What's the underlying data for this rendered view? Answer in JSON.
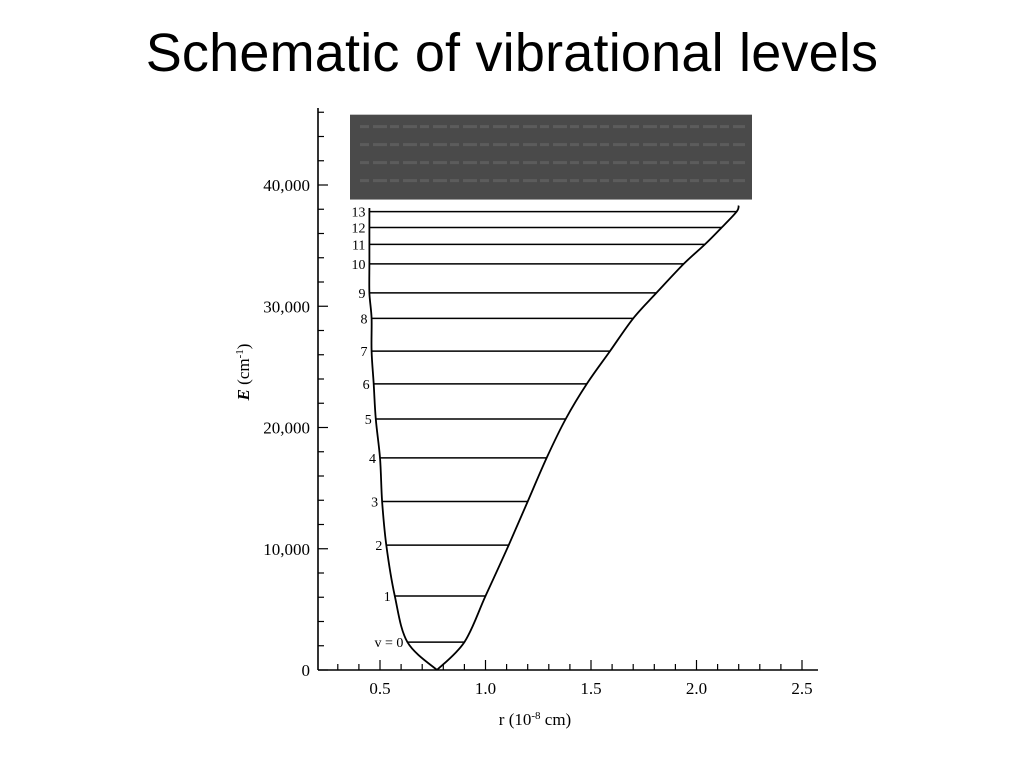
{
  "slide": {
    "title": "Schematic of vibrational levels"
  },
  "figure": {
    "y_axis": {
      "label_main": "E",
      "label_unit_prefix": " (cm",
      "label_unit_sup": "-1",
      "label_unit_suffix": ")",
      "ticks": [
        {
          "value": 0,
          "label": "0"
        },
        {
          "value": 10000,
          "label": "10,000"
        },
        {
          "value": 20000,
          "label": "20,000"
        },
        {
          "value": 30000,
          "label": "30,000"
        },
        {
          "value": 40000,
          "label": "40,000"
        }
      ],
      "range": [
        0,
        46000
      ]
    },
    "x_axis": {
      "label_prefix": "r (10",
      "label_sup": "-8",
      "label_suffix": " cm)",
      "ticks": [
        {
          "value": 0.5,
          "label": "0.5"
        },
        {
          "value": 1.0,
          "label": "1.0"
        },
        {
          "value": 1.5,
          "label": "1.5"
        },
        {
          "value": 2.0,
          "label": "2.0"
        },
        {
          "value": 2.5,
          "label": "2.5"
        }
      ],
      "range": [
        0.3,
        2.65
      ]
    },
    "continuum_band": {
      "color": "#4a4a4a",
      "energy_from": 38800,
      "energy_to": 45800,
      "r_from": 0.45,
      "r_to": 2.35
    },
    "potential_curve": {
      "minimum_r": 0.77,
      "minimum_energy": 0,
      "left_wall_r_at_top": 0.45,
      "right_end_r": 2.2,
      "right_end_energy": 38300
    },
    "levels": [
      {
        "label": "v = 0",
        "energy": 2300,
        "r_left": 0.63,
        "r_right": 0.9
      },
      {
        "label": "1",
        "energy": 6100,
        "r_left": 0.57,
        "r_right": 1.0
      },
      {
        "label": "2",
        "energy": 10300,
        "r_left": 0.53,
        "r_right": 1.11
      },
      {
        "label": "3",
        "energy": 13900,
        "r_left": 0.51,
        "r_right": 1.2
      },
      {
        "label": "4",
        "energy": 17500,
        "r_left": 0.5,
        "r_right": 1.29
      },
      {
        "label": "5",
        "energy": 20700,
        "r_left": 0.48,
        "r_right": 1.38
      },
      {
        "label": "6",
        "energy": 23600,
        "r_left": 0.47,
        "r_right": 1.48
      },
      {
        "label": "7",
        "energy": 26300,
        "r_left": 0.46,
        "r_right": 1.59
      },
      {
        "label": "8",
        "energy": 29000,
        "r_left": 0.46,
        "r_right": 1.7
      },
      {
        "label": "9",
        "energy": 31100,
        "r_left": 0.45,
        "r_right": 1.81
      },
      {
        "label": "10",
        "energy": 33500,
        "r_left": 0.45,
        "r_right": 1.94
      },
      {
        "label": "11",
        "energy": 35100,
        "r_left": 0.45,
        "r_right": 2.04
      },
      {
        "label": "12",
        "energy": 36500,
        "r_left": 0.45,
        "r_right": 2.12
      },
      {
        "label": "13",
        "energy": 37800,
        "r_left": 0.45,
        "r_right": 2.19
      }
    ]
  }
}
